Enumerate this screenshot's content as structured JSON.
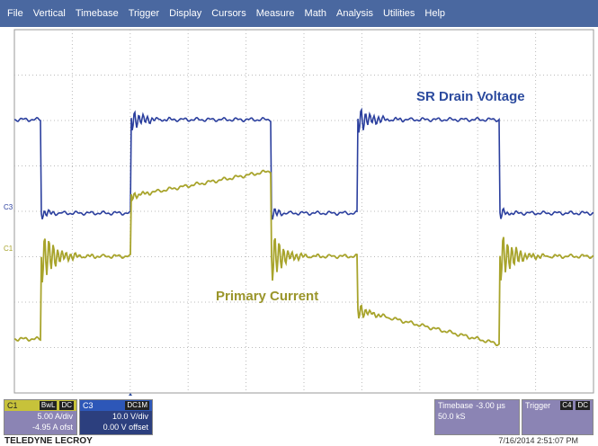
{
  "menu": [
    "File",
    "Vertical",
    "Timebase",
    "Trigger",
    "Display",
    "Cursors",
    "Measure",
    "Math",
    "Analysis",
    "Utilities",
    "Help"
  ],
  "waveform_labels": {
    "voltage": "SR Drain Voltage",
    "current": "Primary Current"
  },
  "channel_markers": {
    "c3": "C3",
    "c1": "C1"
  },
  "channels": [
    {
      "name": "C1",
      "tags": [
        "BwL",
        "DC"
      ],
      "scale": "5.00 A/div",
      "offset": "-4.95 A ofst"
    },
    {
      "name": "C3",
      "tags": [
        "DC1M"
      ],
      "scale": "10.0 V/div",
      "offset": "0.00 V offset"
    }
  ],
  "timebase": {
    "title": "Timebase",
    "delay": "-3.00 µs",
    "rate": "50.0 kS"
  },
  "trigger": {
    "title": "Trigger",
    "tags": [
      "C4",
      "DC"
    ]
  },
  "brand": "TELEDYNE LECROY",
  "timestamp": "7/16/2014 2:51:07 PM"
}
